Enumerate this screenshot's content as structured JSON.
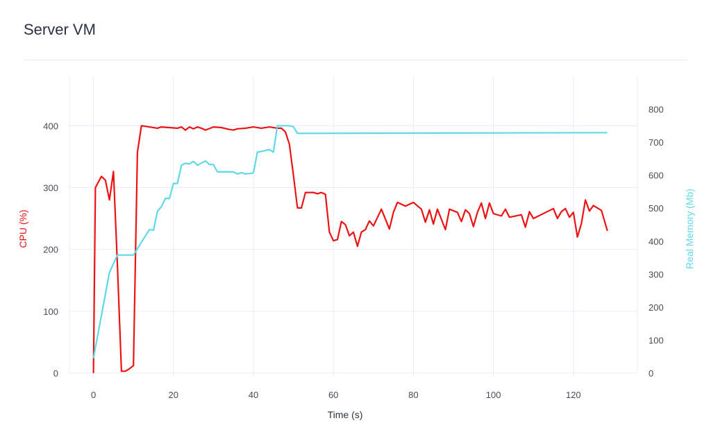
{
  "page": {
    "title": "Server VM"
  },
  "chart_data": {
    "type": "line",
    "title": "Server VM",
    "xlabel": "Time (s)",
    "ylabel": "CPU (%)",
    "y2label": "Real Memory (Mb)",
    "xlim": [
      -6,
      136
    ],
    "ylim": [
      0,
      480
    ],
    "y2lim": [
      0,
      900
    ],
    "xticks": [
      0,
      20,
      40,
      60,
      80,
      100,
      120
    ],
    "yticks": [
      0,
      100,
      200,
      300,
      400
    ],
    "y2ticks": [
      0,
      100,
      200,
      300,
      400,
      500,
      600,
      700,
      800
    ],
    "grid": true,
    "colors": {
      "cpu": "#ee1111",
      "memory": "#5fd8e8",
      "grid": "#e9ecf6",
      "text": "#444b5a"
    },
    "series": [
      {
        "name": "CPU (%)",
        "axis": "y",
        "x": [
          0,
          0.5,
          2,
          3,
          4,
          5,
          6,
          7,
          8,
          9,
          10,
          11,
          12,
          14,
          16,
          17,
          19,
          21,
          22,
          23,
          24,
          25,
          26,
          27,
          28,
          30,
          32,
          34,
          35,
          36,
          38,
          40,
          42,
          44,
          46,
          47,
          48,
          49,
          50,
          51,
          52,
          53,
          55,
          56,
          57,
          58,
          59,
          60,
          61,
          62,
          63,
          64,
          65,
          66,
          67,
          68,
          69,
          70,
          72,
          74,
          75,
          76,
          78,
          80,
          82,
          83,
          84,
          85,
          86,
          88,
          89,
          91,
          92,
          93,
          94,
          95,
          96,
          97,
          98,
          99,
          100,
          102,
          103,
          104,
          107,
          108,
          109,
          110,
          115,
          116,
          117,
          118,
          119,
          120,
          121,
          122,
          123,
          124,
          125,
          126,
          127,
          128.5
        ],
        "y": [
          0,
          300,
          318,
          312,
          280,
          326,
          175,
          3,
          3,
          7,
          12,
          357,
          400,
          398,
          396,
          398,
          397,
          396,
          398,
          393,
          398,
          395,
          398,
          396,
          393,
          398,
          397,
          394,
          393,
          395,
          396,
          398,
          396,
          398,
          396,
          396,
          390,
          370,
          320,
          267,
          267,
          292,
          292,
          290,
          292,
          289,
          228,
          214,
          216,
          245,
          240,
          222,
          228,
          205,
          228,
          232,
          246,
          238,
          265,
          233,
          260,
          276,
          270,
          276,
          265,
          244,
          264,
          241,
          265,
          232,
          265,
          260,
          245,
          264,
          258,
          237,
          260,
          275,
          250,
          275,
          258,
          254,
          265,
          252,
          256,
          236,
          261,
          250,
          266,
          250,
          261,
          266,
          252,
          260,
          220,
          242,
          280,
          262,
          271,
          267,
          263,
          230
        ]
      },
      {
        "name": "Real Memory (Mb)",
        "axis": "y2",
        "x": [
          0,
          4,
          6,
          8,
          10,
          14,
          15,
          16,
          17,
          18,
          19,
          20,
          21,
          22,
          23,
          24,
          25,
          26,
          27,
          28,
          29,
          30,
          31,
          32,
          33,
          34,
          35,
          36,
          37,
          38,
          39,
          40,
          41,
          42,
          43,
          44,
          45,
          46,
          47,
          48,
          49,
          50,
          51,
          52,
          128.5
        ],
        "y": [
          45,
          305,
          358,
          358,
          358,
          435,
          433,
          490,
          505,
          530,
          529,
          575,
          575,
          630,
          636,
          634,
          642,
          630,
          637,
          643,
          633,
          632,
          610,
          610,
          610,
          610,
          610,
          604,
          608,
          604,
          605,
          607,
          670,
          672,
          675,
          678,
          670,
          750,
          750,
          750,
          750,
          747,
          727,
          727,
          729
        ]
      }
    ]
  }
}
